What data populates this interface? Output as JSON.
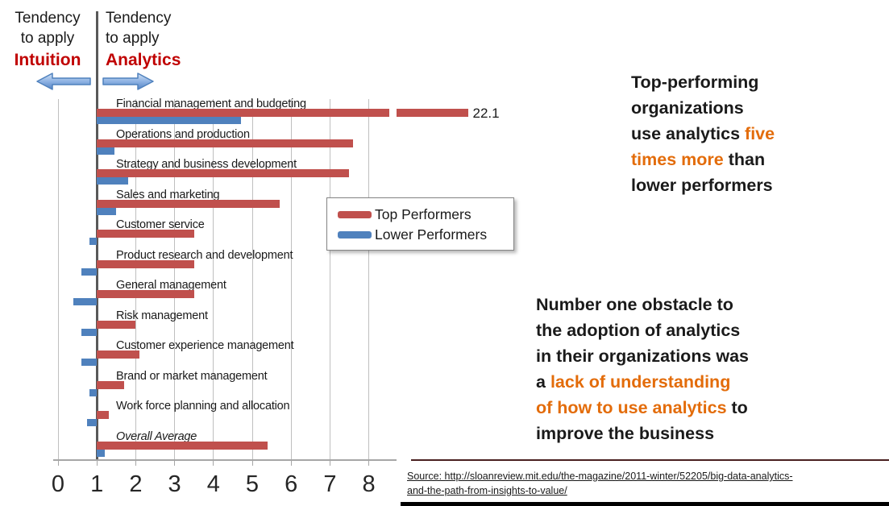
{
  "header": {
    "left": {
      "line1": "Tendency",
      "line2": "to apply",
      "emphasis": "Intuition"
    },
    "right": {
      "line1": "Tendency",
      "line2": "to apply",
      "emphasis": "Analytics"
    }
  },
  "chart_data": {
    "type": "bar",
    "orientation": "horizontal",
    "baseline": 1,
    "axis": {
      "min": 0,
      "max": 8,
      "ticks": [
        0,
        1,
        2,
        3,
        4,
        5,
        6,
        7,
        8
      ]
    },
    "grid": true,
    "legend_position": "middle-right",
    "categories": [
      "Financial management and budgeting",
      "Operations and production",
      "Strategy and business development",
      "Sales and marketing",
      "Customer service",
      "Product research and development",
      "General management",
      "Risk management",
      "Customer experience management",
      "Brand or market management",
      "Work force planning and allocation",
      "Overall Average"
    ],
    "italic_category": "Overall Average",
    "series": [
      {
        "name": "Top Performers",
        "color": "#C0504D",
        "values": [
          22.1,
          7.6,
          7.5,
          5.7,
          3.5,
          3.5,
          3.5,
          2.0,
          2.1,
          1.7,
          1.3,
          5.4
        ]
      },
      {
        "name": "Lower Performers",
        "color": "#4F81BD",
        "values": [
          4.7,
          1.45,
          1.8,
          1.5,
          0.8,
          0.6,
          0.4,
          0.6,
          0.6,
          0.8,
          0.75,
          1.2
        ]
      }
    ],
    "broken_bar": {
      "category_index": 0,
      "series_index": 0,
      "display_segments": [
        [
          1,
          8.53
        ],
        [
          8.72,
          10.55
        ]
      ],
      "data_label": "22.1"
    }
  },
  "annotations": {
    "block1": {
      "lines": [
        [
          {
            "t": "Top-performing",
            "c": "black"
          }
        ],
        [
          {
            "t": "organizations",
            "c": "black"
          }
        ],
        [
          {
            "t": "use analytics ",
            "c": "black"
          },
          {
            "t": "five",
            "c": "orange"
          }
        ],
        [
          {
            "t": "times more",
            "c": "orange"
          },
          {
            "t": " than",
            "c": "black"
          }
        ],
        [
          {
            "t": "lower performers",
            "c": "black"
          }
        ]
      ]
    },
    "block2": {
      "lines": [
        [
          {
            "t": "Number one obstacle to",
            "c": "black"
          }
        ],
        [
          {
            "t": "the adoption of analytics",
            "c": "black"
          }
        ],
        [
          {
            "t": "in their organizations was",
            "c": "black"
          }
        ],
        [
          {
            "t": "a ",
            "c": "black"
          },
          {
            "t": "lack of understanding",
            "c": "orange"
          }
        ],
        [
          {
            "t": "of how to use analytics",
            "c": "orange"
          },
          {
            "t": " to",
            "c": "black"
          }
        ],
        [
          {
            "t": "improve the business",
            "c": "black"
          }
        ]
      ]
    }
  },
  "source": {
    "line1": "Source: http://sloanreview.mit.edu/the-magazine/2011-winter/52205/big-data-analytics-",
    "line2": "and-the-path-from-insights-to-value/"
  },
  "colors": {
    "black": "#1a1a1a",
    "orange": "#E36C0A",
    "heading_red": "#c00000",
    "bar_top": "#C0504D",
    "bar_lower": "#4F81BD",
    "gridline": "#bfbfbf",
    "accent_line": "#4a2020",
    "footer_bar": "#000000"
  }
}
